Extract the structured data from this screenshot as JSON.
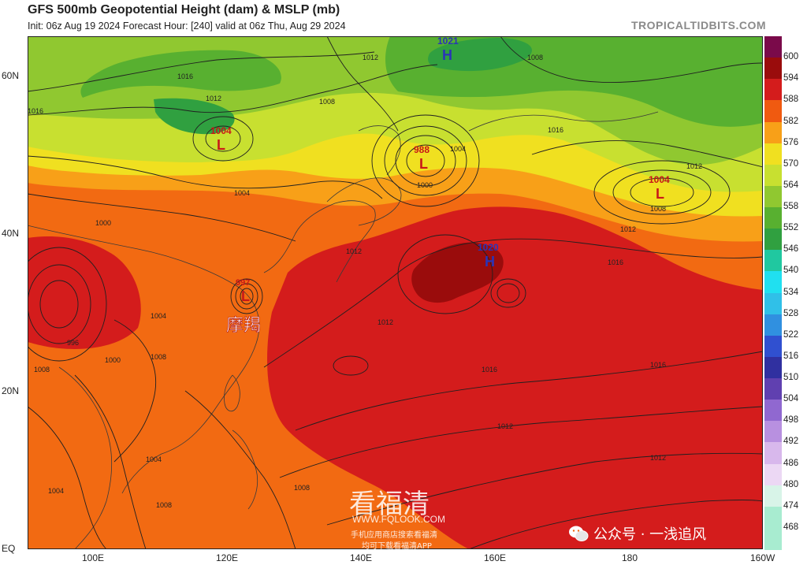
{
  "header": {
    "title": "GFS 500mb Geopotential Height (dam) & MSLP (mb)",
    "subtitle": "Init: 06z Aug 19 2024   Forecast Hour: [240]   valid at 06z Thu, Aug 29 2024",
    "site": "TROPICALTIDBITS.COM"
  },
  "axes": {
    "lat_labels": [
      "60N",
      "40N",
      "20N",
      "EQ"
    ],
    "lon_labels": [
      "100E",
      "120E",
      "140E",
      "160E",
      "180",
      "160W"
    ]
  },
  "colorbar": {
    "labels": [
      "600",
      "594",
      "588",
      "582",
      "576",
      "570",
      "564",
      "558",
      "552",
      "546",
      "540",
      "534",
      "528",
      "522",
      "516",
      "510",
      "504",
      "498",
      "492",
      "486",
      "480",
      "474",
      "468"
    ],
    "colors": [
      "#7a0a4a",
      "#9a0c0c",
      "#d41c1c",
      "#f05a10",
      "#f8a018",
      "#f0e020",
      "#c8e030",
      "#90c830",
      "#58b030",
      "#30a040",
      "#20c8a0",
      "#20e0f0",
      "#30c0e8",
      "#3090e0",
      "#3050d0",
      "#3030a0",
      "#6040b0",
      "#9068d0",
      "#b890e0",
      "#d8b8ec",
      "#ecd8f4",
      "#d8f4e8",
      "#a8ecd0"
    ]
  },
  "systems": [
    {
      "type": "H",
      "value": "1021"
    },
    {
      "type": "L",
      "value": "1004"
    },
    {
      "type": "L",
      "value": "988"
    },
    {
      "type": "L",
      "value": "1004"
    },
    {
      "type": "H",
      "value": "1020"
    },
    {
      "type": "L",
      "value": "997"
    }
  ],
  "isobar_labels": [
    "1012",
    "1008",
    "1016",
    "1012",
    "1016",
    "1008",
    "1004",
    "1000",
    "1012",
    "1016",
    "1012",
    "1008",
    "1012",
    "1016",
    "1004",
    "1000",
    "996",
    "1004",
    "1008",
    "1012",
    "1008",
    "1004",
    "1012",
    "1016",
    "1012",
    "1008",
    "1004",
    "1008",
    "1000",
    "1016",
    "1012"
  ],
  "typhoon_label": "摩羯",
  "watermark": {
    "brand": "看福清",
    "url": "WWW.FQLOOK.COM",
    "line1": "手机应用商店搜索看福清",
    "line2": "均可下载看福清APP",
    "account": "公众号 · 一浅追风"
  }
}
